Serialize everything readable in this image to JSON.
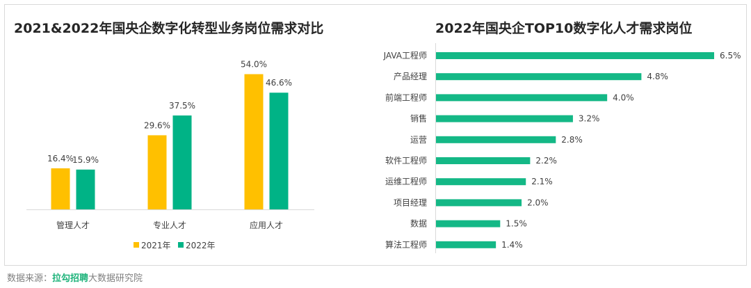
{
  "colors": {
    "series2021": "#FFC000",
    "series2022": "#00B386",
    "hbar": "#14B886"
  },
  "chart_data": [
    {
      "type": "bar",
      "title": "2021&2022年国央企数字化转型业务岗位需求对比",
      "categories": [
        "管理人才",
        "专业人才",
        "应用人才"
      ],
      "series": [
        {
          "name": "2021年",
          "values": [
            16.4,
            29.6,
            54.0
          ],
          "labels": [
            "16.4%",
            "29.6%",
            "54.0%"
          ]
        },
        {
          "name": "2022年",
          "values": [
            15.9,
            37.5,
            46.6
          ],
          "labels": [
            "15.9%",
            "37.5%",
            "46.6%"
          ]
        }
      ],
      "ylim": [
        0,
        60
      ],
      "legend_position": "bottom",
      "grid": false
    },
    {
      "type": "bar",
      "orientation": "horizontal",
      "title": "2022年国央企TOP10数字化人才需求岗位",
      "categories": [
        "JAVA工程师",
        "产品经理",
        "前端工程师",
        "销售",
        "运营",
        "软件工程师",
        "运维工程师",
        "项目经理",
        "数据",
        "算法工程师"
      ],
      "values": [
        6.5,
        4.8,
        4.0,
        3.2,
        2.8,
        2.2,
        2.1,
        2.0,
        1.5,
        1.4
      ],
      "labels": [
        "6.5%",
        "4.8%",
        "4.0%",
        "3.2%",
        "2.8%",
        "2.2%",
        "2.1%",
        "2.0%",
        "1.5%",
        "1.4%"
      ],
      "xlim": [
        0,
        6.5
      ],
      "grid": false
    }
  ],
  "source": {
    "prefix": "数据来源：",
    "brand": "拉勾招聘",
    "suffix": "大数据研究院"
  }
}
